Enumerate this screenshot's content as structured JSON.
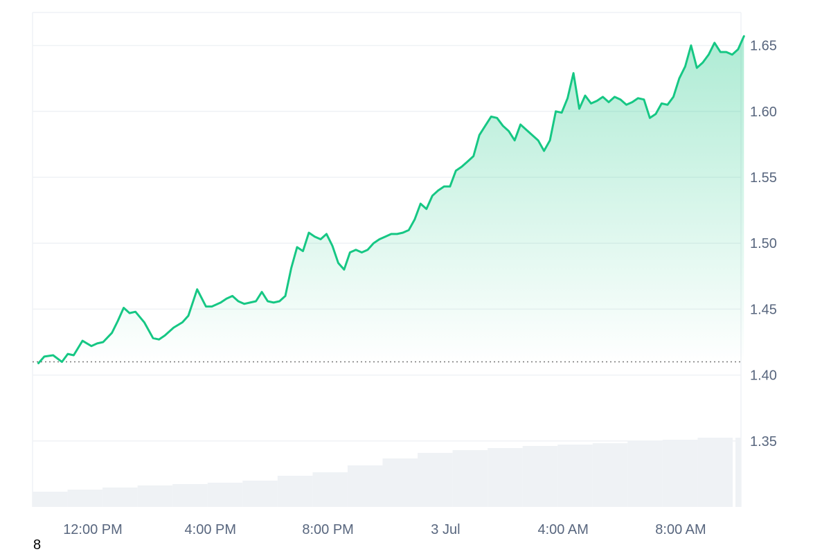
{
  "chart_data": {
    "type": "area",
    "x_tick_labels": [
      "12:00 PM",
      "4:00 PM",
      "8:00 PM",
      "3 Jul",
      "4:00 AM",
      "8:00 AM"
    ],
    "y_tick_labels": [
      "1.35",
      "1.40",
      "1.45",
      "1.50",
      "1.55",
      "1.60",
      "1.65"
    ],
    "ylim": [
      1.3,
      1.675
    ],
    "baseline": 1.41,
    "grid": true,
    "x_hours": [
      0,
      0.2,
      0.5,
      0.8,
      1.0,
      1.2,
      1.5,
      1.8,
      2.0,
      2.2,
      2.5,
      2.7,
      2.9,
      3.1,
      3.3,
      3.6,
      3.9,
      4.1,
      4.3,
      4.6,
      4.9,
      5.1,
      5.4,
      5.7,
      5.9,
      6.2,
      6.4,
      6.6,
      6.8,
      7.0,
      7.2,
      7.4,
      7.6,
      7.8,
      8.0,
      8.2,
      8.4,
      8.6,
      8.8,
      9.0,
      9.2,
      9.4,
      9.6,
      9.8,
      10.0,
      10.2,
      10.4,
      10.6,
      10.8,
      11.0,
      11.2,
      11.4,
      11.6,
      11.8,
      12.0,
      12.2,
      12.4,
      12.6,
      12.8,
      13.0,
      13.2,
      13.4,
      13.6,
      13.8,
      14.0,
      14.2,
      14.4,
      14.6,
      14.8,
      15.0,
      15.2,
      15.4,
      15.6,
      15.8,
      16.0,
      16.2,
      16.4,
      16.6,
      16.8,
      17.0,
      17.2,
      17.4,
      17.6,
      17.8,
      18.0,
      18.2,
      18.4,
      18.6,
      18.8,
      19.0,
      19.2,
      19.4,
      19.6,
      19.8,
      20.0,
      20.2,
      20.4,
      20.6,
      20.8,
      21.0,
      21.2,
      21.4,
      21.6,
      21.8,
      22.0,
      22.2,
      22.4,
      22.6,
      22.8,
      23.0,
      23.2,
      23.4,
      23.6,
      23.8,
      24.0
    ],
    "price": [
      1.409,
      1.414,
      1.415,
      1.41,
      1.416,
      1.415,
      1.426,
      1.422,
      1.424,
      1.425,
      1.432,
      1.441,
      1.451,
      1.447,
      1.448,
      1.44,
      1.428,
      1.427,
      1.43,
      1.436,
      1.44,
      1.445,
      1.465,
      1.452,
      1.452,
      1.455,
      1.458,
      1.46,
      1.456,
      1.454,
      1.455,
      1.456,
      1.463,
      1.456,
      1.455,
      1.456,
      1.46,
      1.481,
      1.497,
      1.494,
      1.508,
      1.505,
      1.503,
      1.507,
      1.498,
      1.485,
      1.48,
      1.493,
      1.495,
      1.493,
      1.495,
      1.5,
      1.503,
      1.505,
      1.507,
      1.507,
      1.508,
      1.51,
      1.518,
      1.53,
      1.526,
      1.536,
      1.54,
      1.543,
      1.543,
      1.555,
      1.558,
      1.562,
      1.566,
      1.582,
      1.589,
      1.596,
      1.595,
      1.589,
      1.585,
      1.578,
      1.59,
      1.586,
      1.582,
      1.578,
      1.57,
      1.578,
      1.6,
      1.599,
      1.61,
      1.629,
      1.602,
      1.612,
      1.606,
      1.608,
      1.611,
      1.607,
      1.611,
      1.609,
      1.605,
      1.607,
      1.61,
      1.609,
      1.595,
      1.598,
      1.606,
      1.605,
      1.611,
      1.625,
      1.634,
      1.65,
      1.633,
      1.637,
      1.643,
      1.652,
      1.645,
      1.645,
      1.643,
      1.647,
      1.657
    ],
    "volume_relative": [
      0.22,
      0.25,
      0.28,
      0.31,
      0.33,
      0.35,
      0.38,
      0.45,
      0.5,
      0.6,
      0.7,
      0.78,
      0.82,
      0.85,
      0.88,
      0.9,
      0.92,
      0.95,
      0.97,
      1.0
    ],
    "colors": {
      "line": "#16c784",
      "volume": "#eff2f5",
      "grid": "#eff2f5",
      "baseline": "#777777"
    }
  },
  "footer": {
    "marker": "8"
  }
}
